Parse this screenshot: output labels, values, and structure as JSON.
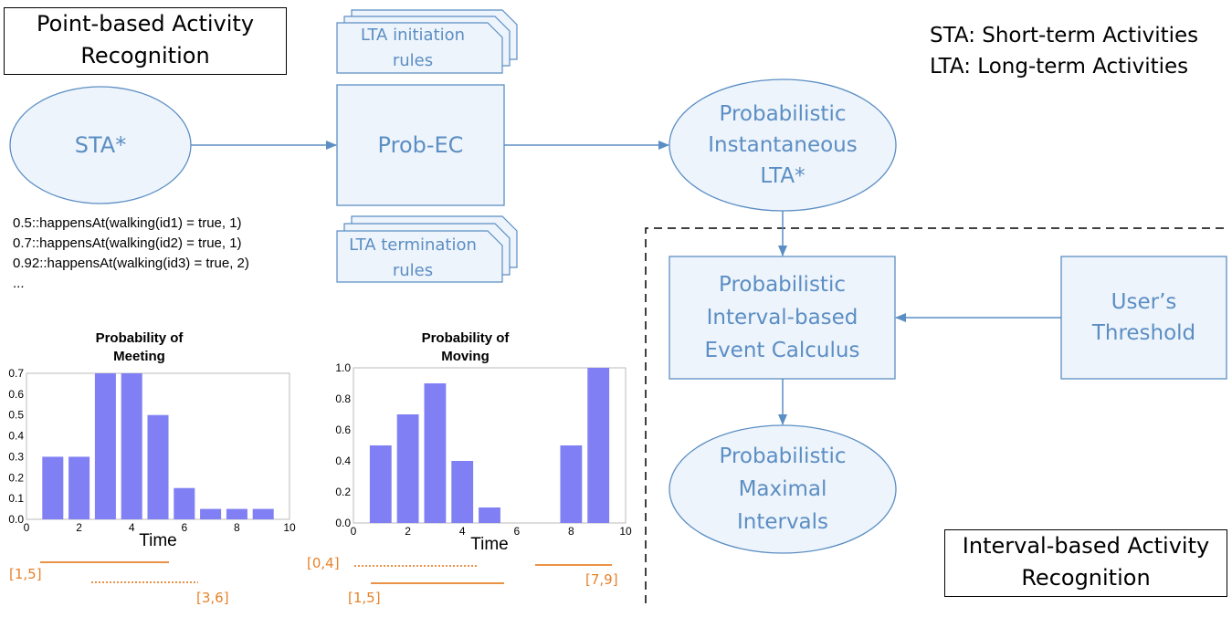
{
  "titles": {
    "point_based": [
      "Point-based Activity",
      "Recognition"
    ],
    "interval_based": [
      "Interval-based Activity",
      "Recognition"
    ]
  },
  "legend": {
    "sta": "STA: Short-term Activities",
    "lta": "LTA: Long-term Activities"
  },
  "nodes": {
    "sta": "STA*",
    "prob_ec": "Prob-EC",
    "prob_inst_lta": [
      "Probabilistic",
      "Instantaneous",
      "LTA*"
    ],
    "pie_calculus": [
      "Probabilistic",
      "Interval-based",
      "Event Calculus"
    ],
    "users_threshold": [
      "User’s",
      "Threshold"
    ],
    "max_intervals": [
      "Probabilistic",
      "Maximal",
      "Intervals"
    ],
    "lta_init": [
      "LTA initiation",
      "rules"
    ],
    "lta_term": [
      "LTA termination",
      "rules"
    ]
  },
  "evidence_lines": [
    "0.5::happensAt(walking(id1) = true, 1)",
    "0.7::happensAt(walking(id2) = true, 1)",
    "0.92::happensAt(walking(id3) = true, 2)",
    "..."
  ],
  "colors": {
    "node_stroke": "#5b8ec4",
    "node_text": "#5b8ec4",
    "node_fill": "#eef4fb",
    "bar": "#8080f4",
    "interval": "#e8822b"
  },
  "chart_data": [
    {
      "type": "bar",
      "title": [
        "Probability of",
        "Meeting"
      ],
      "xlabel": "Time",
      "x": [
        1,
        2,
        3,
        4,
        5,
        6,
        7,
        8,
        9
      ],
      "values": [
        0.3,
        0.3,
        0.7,
        0.7,
        0.5,
        0.15,
        0.05,
        0.05,
        0.05
      ],
      "xlim": [
        0,
        10
      ],
      "ylim": [
        0,
        0.7
      ],
      "xticks": [
        "0",
        "2",
        "4",
        "6",
        "8",
        "10"
      ],
      "yticks": [
        "0.0",
        "0.1",
        "0.2",
        "0.3",
        "0.4",
        "0.5",
        "0.6",
        "0.7"
      ],
      "intervals": [
        {
          "label": "[1,5]",
          "style": "solid"
        },
        {
          "label": "[3,6]",
          "style": "dotted"
        }
      ]
    },
    {
      "type": "bar",
      "title": [
        "Probability of",
        "Moving"
      ],
      "xlabel": "Time",
      "x": [
        1,
        2,
        3,
        4,
        5,
        6,
        7,
        8,
        9
      ],
      "values": [
        0.5,
        0.7,
        0.9,
        0.4,
        0.1,
        0,
        0,
        0.5,
        1.0
      ],
      "xlim": [
        0,
        10
      ],
      "ylim": [
        0,
        1.0
      ],
      "xticks": [
        "0",
        "2",
        "4",
        "6",
        "8",
        "10"
      ],
      "yticks": [
        "0.0",
        "0.2",
        "0.4",
        "0.6",
        "0.8",
        "1.0"
      ],
      "intervals": [
        {
          "label": "[0,4]",
          "style": "dotted"
        },
        {
          "label": "[1,5]",
          "style": "solid"
        },
        {
          "label": "[7,9]",
          "style": "solid"
        }
      ]
    }
  ]
}
